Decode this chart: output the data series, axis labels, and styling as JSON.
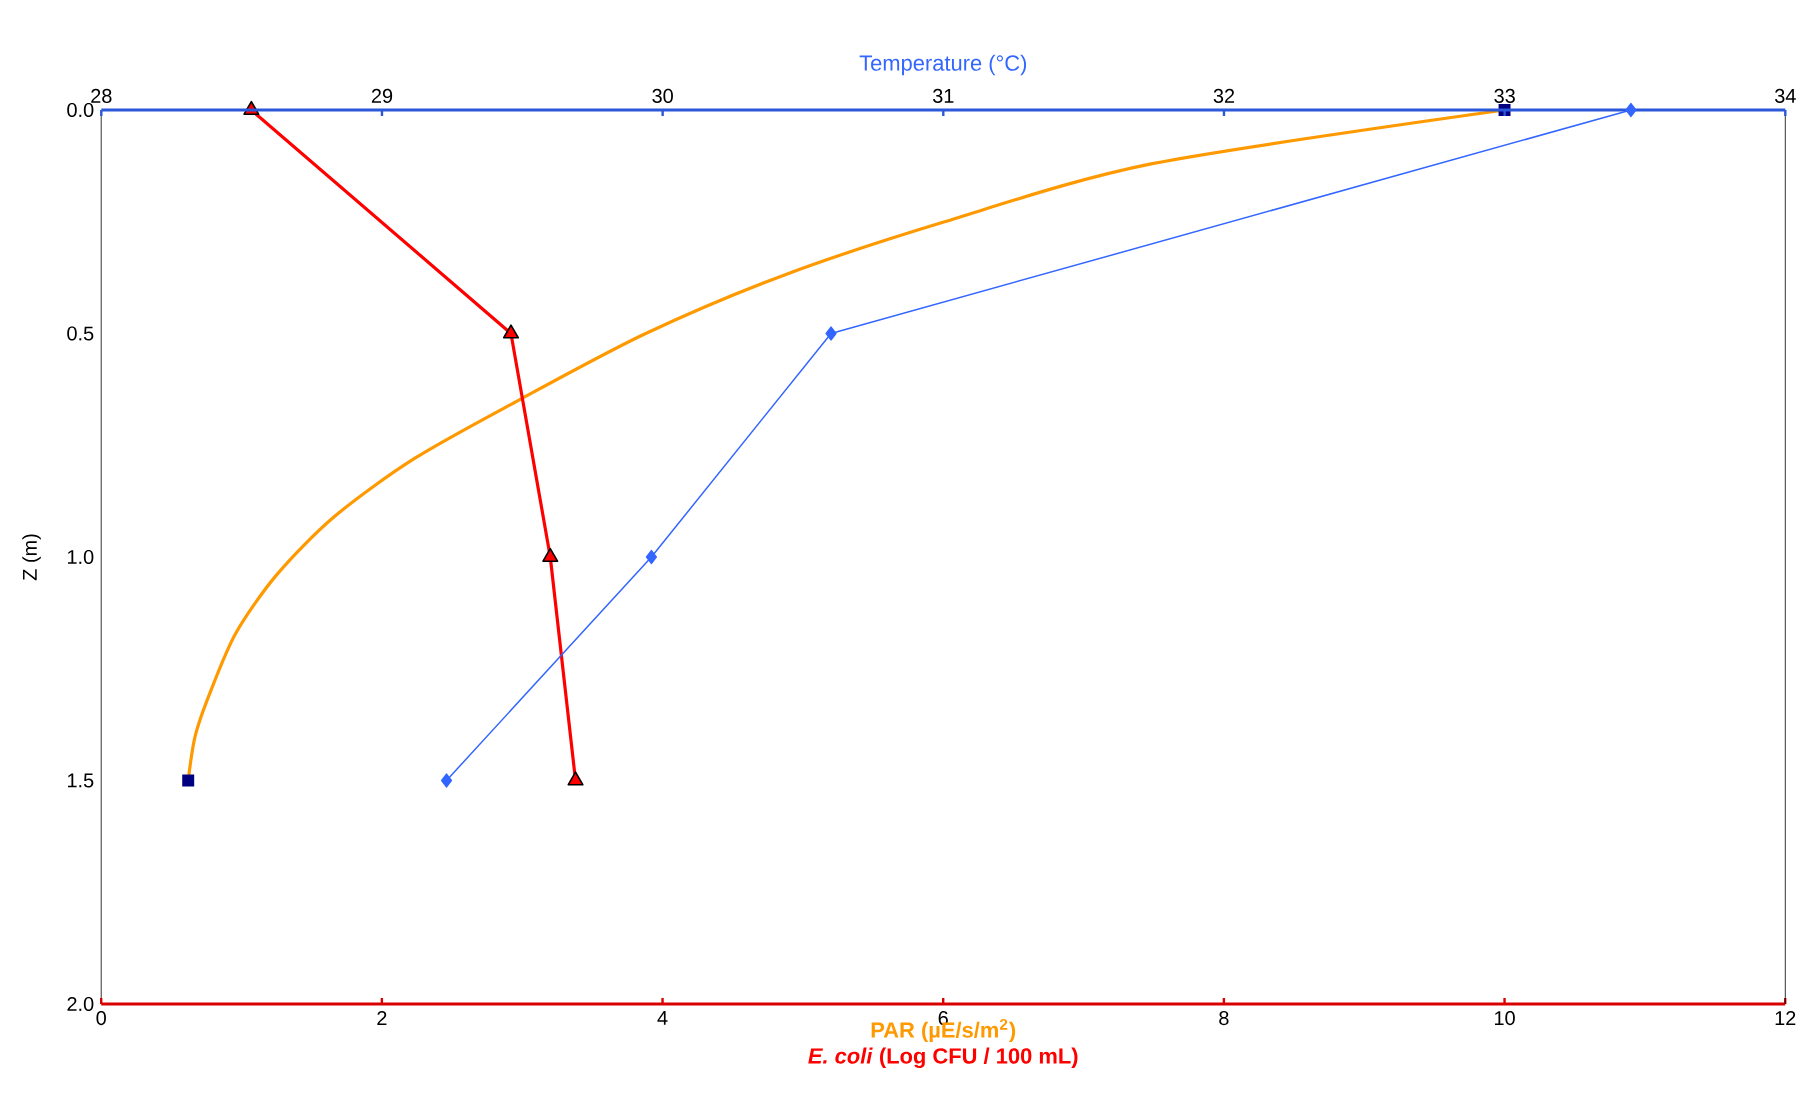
{
  "chart_data": {
    "type": "line",
    "x2label": "Temperature  (°C)",
    "xlabel": [
      "PAR (µE/s/m$^{2}$)",
      "*E. coli* (Log CFU / 100 mL)"
    ],
    "ylabel": "Z (m)",
    "xlim": [
      0,
      12
    ],
    "xticks": [
      0,
      2,
      4,
      6,
      8,
      10,
      12
    ],
    "x2lim": [
      28,
      34
    ],
    "x2ticks": [
      28,
      29,
      30,
      31,
      32,
      33,
      34
    ],
    "ylim": [
      2.0,
      0.0
    ],
    "yticks": [
      {
        "value": 0,
        "label": "0.0"
      },
      {
        "value": 0.5,
        "label": "0.5"
      },
      {
        "value": 1.0,
        "label": "1.0"
      },
      {
        "value": 1.5,
        "label": "1.5"
      },
      {
        "value": 2.0,
        "label": "2.0"
      }
    ],
    "series": [
      {
        "type": "line",
        "color": "#ff9900",
        "marker": "none",
        "x": [
          10.0,
          7.49,
          6.01,
          4.86,
          3.88,
          2.97,
          2.23,
          1.66,
          1.25,
          0.96,
          0.78,
          0.67,
          0.62
        ],
        "values": [
          0,
          0.12,
          0.25,
          0.37,
          0.5,
          0.65,
          0.78,
          0.91,
          1.04,
          1.17,
          1.3,
          1.4,
          1.5
        ]
      },
      {
        "type": "scatter",
        "color": "#000080",
        "marker": "square",
        "x": [
          10.0,
          0.62
        ],
        "values": [
          0,
          1.5
        ]
      },
      {
        "type": "line",
        "color": "#ff0000",
        "marker": "triangle",
        "x": [
          1.07,
          2.92,
          3.2,
          3.38
        ],
        "values": [
          0,
          0.5,
          1.0,
          1.5
        ]
      },
      {
        "type": "line",
        "color": "#3366ff",
        "marker": "diamond",
        "axis": "x2",
        "x": [
          33.45,
          30.6,
          29.96,
          29.23
        ],
        "values": [
          0,
          0.5,
          1.0,
          1.5
        ]
      }
    ]
  }
}
